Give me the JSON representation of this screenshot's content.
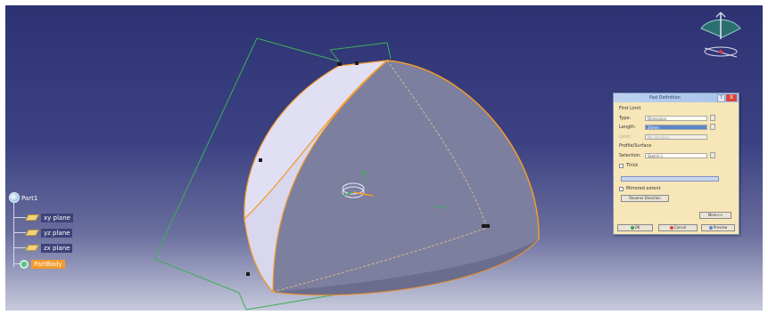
{
  "tree": {
    "root_label": "Part1",
    "items": [
      {
        "label": "xy plane",
        "type": "plane"
      },
      {
        "label": "yz plane",
        "type": "plane"
      },
      {
        "label": "zx plane",
        "type": "plane"
      },
      {
        "label": "PartBody",
        "type": "body",
        "selected": true
      }
    ]
  },
  "dialog": {
    "title": "Pad Definition",
    "help_label": "?",
    "close_label": "X",
    "first_limit_label": "First Limit",
    "type_label": "Type:",
    "type_value": "Dimension",
    "length_label": "Length:",
    "length_value": "20mm",
    "limit_label": "Limit:",
    "limit_value": "No selection",
    "profile_label": "Profile/Surface",
    "selection_label": "Selection:",
    "selection_value": "Sketch.1",
    "thick_label": "Thick",
    "mirrored_label": "Mirrored extent",
    "reverse_label": "Reverse Direction",
    "more_label": "More>>",
    "ok_label": "OK",
    "cancel_label": "Cancel",
    "preview_label": "Preview"
  },
  "colors": {
    "background_top": "#2d3372",
    "background_bottom": "#c8cadd",
    "solid_face": "#7d7f9e",
    "solid_side": "#d9d7ee",
    "edge_highlight": "#f39a2c",
    "dimension_lines": "#3fae5a",
    "selection_orange": "#f39a2c"
  },
  "icons": [
    "part-icon",
    "plane-icon",
    "gear-icon",
    "compass-icon",
    "help-icon",
    "close-icon",
    "ok-icon",
    "cancel-icon",
    "preview-icon"
  ]
}
